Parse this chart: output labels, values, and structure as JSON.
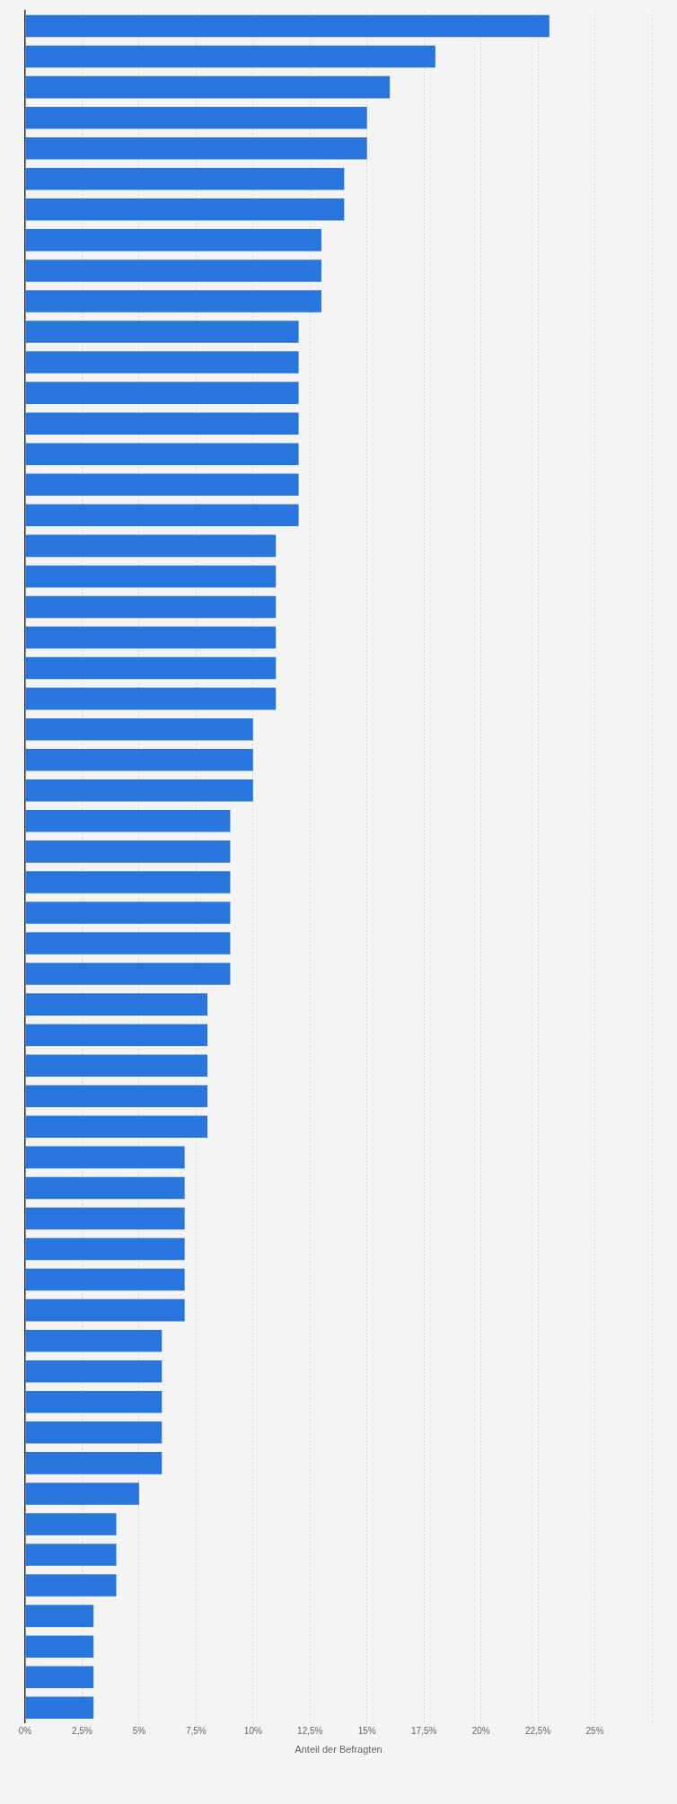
{
  "chart_data": {
    "type": "bar",
    "orientation": "horizontal",
    "xlabel": "Anteil der Befragten",
    "categories": [
      null,
      null,
      null,
      null,
      null,
      null,
      null,
      null,
      null,
      null,
      null,
      null,
      null,
      null,
      null,
      null,
      null,
      null,
      null,
      null,
      null,
      null,
      null,
      null,
      null,
      null,
      null,
      null,
      null,
      null,
      null,
      null,
      null,
      null,
      null,
      null,
      null,
      null,
      null,
      null,
      null,
      null,
      null,
      null,
      null,
      null,
      null,
      null,
      null,
      null,
      null,
      null,
      null,
      null,
      null,
      null
    ],
    "values": [
      23,
      18,
      16,
      15,
      15,
      14,
      14,
      13,
      13,
      13,
      12,
      12,
      12,
      12,
      12,
      12,
      12,
      11,
      11,
      11,
      11,
      11,
      11,
      10,
      10,
      10,
      9,
      9,
      9,
      9,
      9,
      9,
      8,
      8,
      8,
      8,
      8,
      7,
      7,
      7,
      7,
      7,
      7,
      6,
      6,
      6,
      6,
      6,
      5,
      4,
      4,
      4,
      3,
      3,
      3,
      3
    ],
    "color": "#2876dd",
    "xlim": [
      0,
      27.5
    ],
    "xticks": [
      {
        "value": 0,
        "label": "0%"
      },
      {
        "value": 2.5,
        "label": "2,5%"
      },
      {
        "value": 5,
        "label": "5%"
      },
      {
        "value": 7.5,
        "label": "7,5%"
      },
      {
        "value": 10,
        "label": "10%"
      },
      {
        "value": 12.5,
        "label": "12,5%"
      },
      {
        "value": 15,
        "label": "15%"
      },
      {
        "value": 17.5,
        "label": "17,5%"
      },
      {
        "value": 20,
        "label": "20%"
      },
      {
        "value": 22.5,
        "label": "22,5%"
      },
      {
        "value": 25,
        "label": "25%"
      },
      {
        "value": 27.5,
        "label": null
      }
    ],
    "grid": "x"
  }
}
